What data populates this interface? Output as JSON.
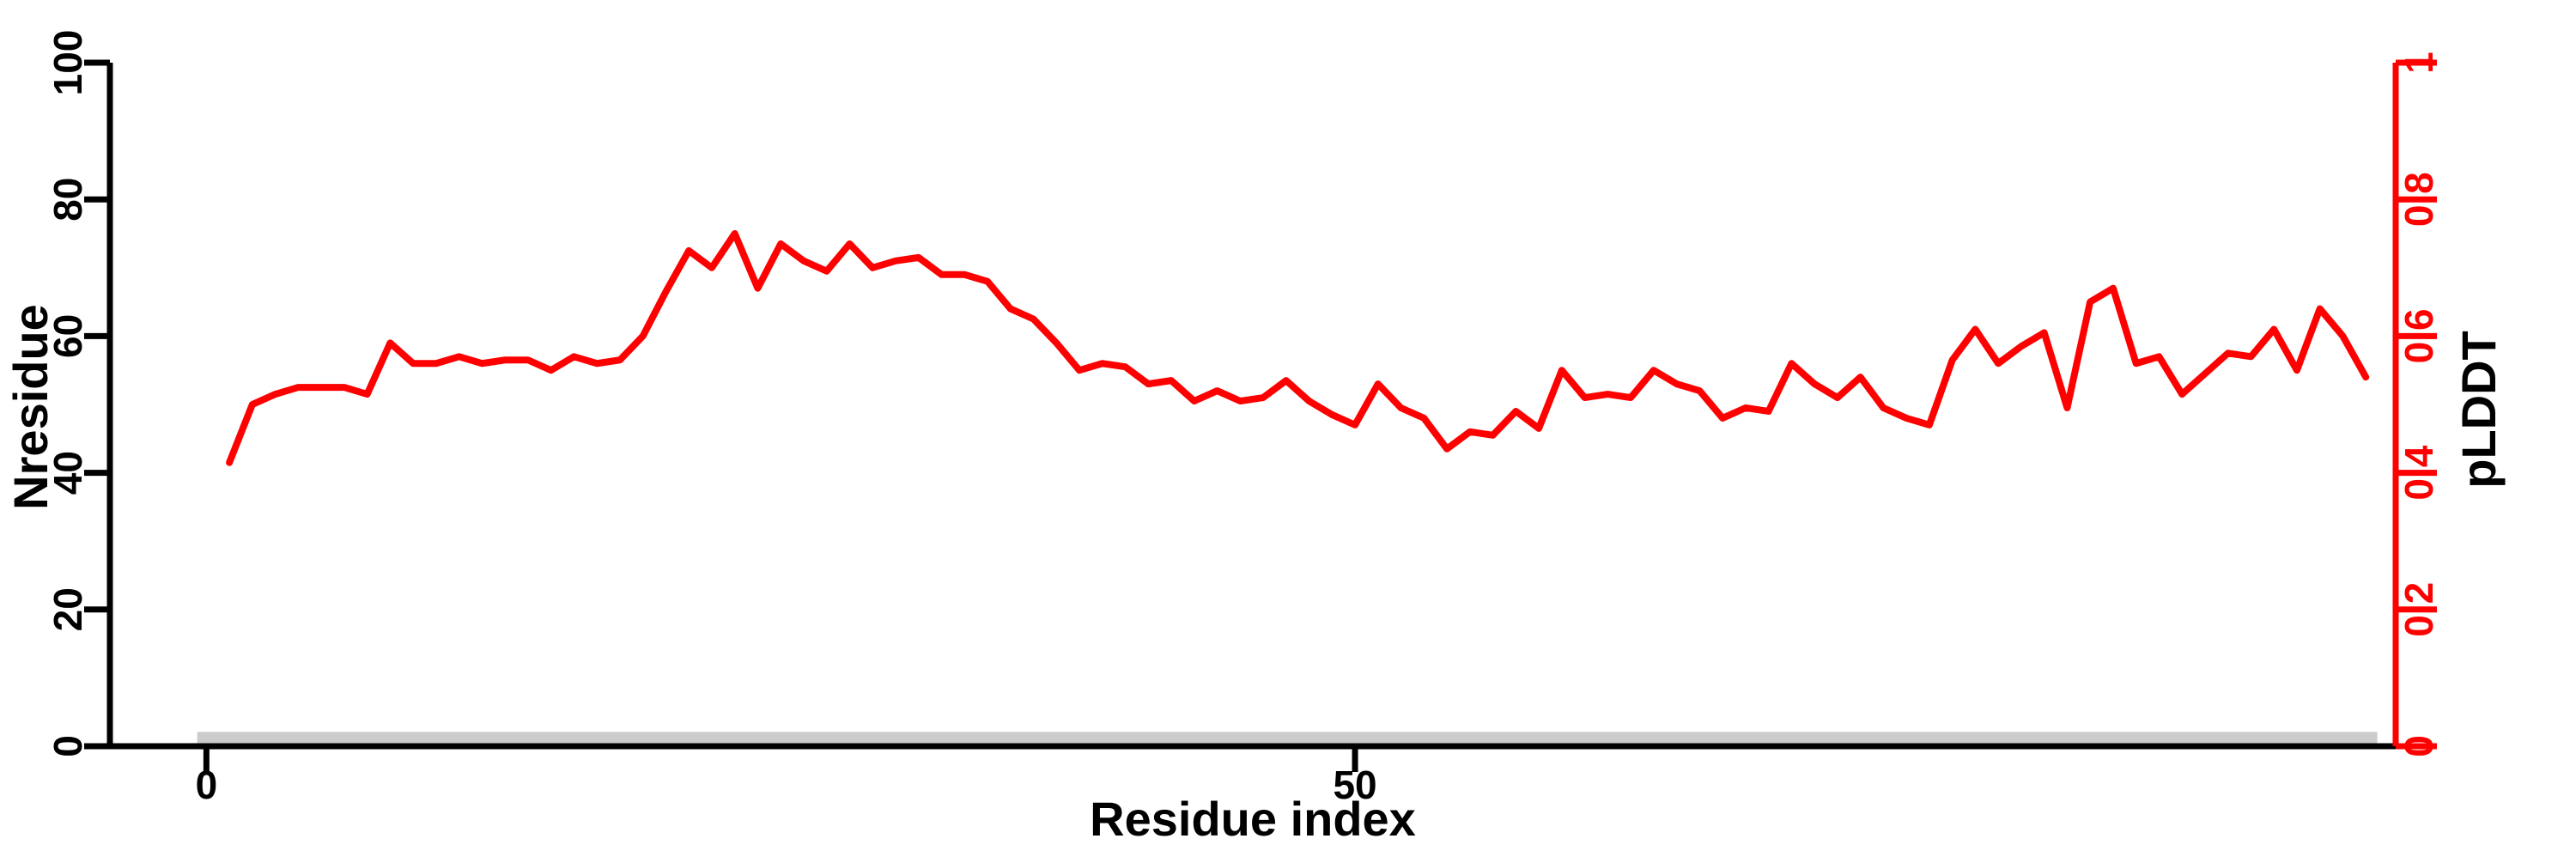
{
  "figure": {
    "background": "#ffffff",
    "line_color": "#ff0000",
    "axis_color": "#000000",
    "right_axis_color": "#ff0000",
    "bar_color": "#cccccc"
  },
  "chart_data": {
    "type": "line",
    "title": "",
    "xlabel": "Residue index",
    "ylabel_left": "Nresidue",
    "ylabel_right": "pLDDT",
    "grid": false,
    "legend": null,
    "x_axis": {
      "label": "Residue index",
      "ticks": [
        0,
        50
      ],
      "range": [
        -4.2,
        95.3
      ]
    },
    "left_axis": {
      "label": "Nresidue",
      "range": [
        0,
        100
      ],
      "ticks": [
        0,
        20,
        40,
        60,
        80,
        100
      ]
    },
    "right_axis": {
      "label": "pLDDT",
      "range": [
        0,
        1
      ],
      "ticks": [
        "0",
        "0.2",
        "0.4",
        "0.6",
        "0.8",
        "1"
      ],
      "color": "#ff0000"
    },
    "series": [
      {
        "name": "pLDDT",
        "color": "#ff0000",
        "note": "plotted against left scale 0-100; right axis pLDDT = value/100",
        "x_first": 1,
        "x_step": 1,
        "values": [
          41.5,
          50,
          51.5,
          52.5,
          52.5,
          52.5,
          51.5,
          59,
          56,
          56,
          57,
          56,
          56.5,
          56.5,
          55,
          57,
          56,
          56.5,
          60,
          66.5,
          72.5,
          70,
          75,
          67,
          73.5,
          71,
          69.5,
          73.5,
          70,
          71,
          71.5,
          69,
          69,
          68,
          64,
          62.5,
          59,
          55,
          56,
          55.5,
          53,
          53.5,
          50.5,
          52,
          50.5,
          51,
          53.5,
          50.5,
          48.5,
          47,
          53,
          49.5,
          48,
          43.5,
          46,
          45.5,
          49,
          46.5,
          55,
          51,
          51.5,
          51,
          55,
          53,
          52,
          48,
          49.5,
          49,
          56,
          53,
          51,
          54,
          49.5,
          48,
          47,
          56.5,
          61,
          56,
          58.5,
          60.5,
          49.5,
          65,
          67,
          56,
          57,
          51.5,
          54.5,
          57.5,
          57,
          61,
          55,
          64,
          60,
          54
        ]
      }
    ],
    "annotation_bar": {
      "x_range": [
        -0.4,
        94.5
      ],
      "y_range": [
        0.35,
        2.1
      ],
      "color": "#cccccc"
    }
  }
}
